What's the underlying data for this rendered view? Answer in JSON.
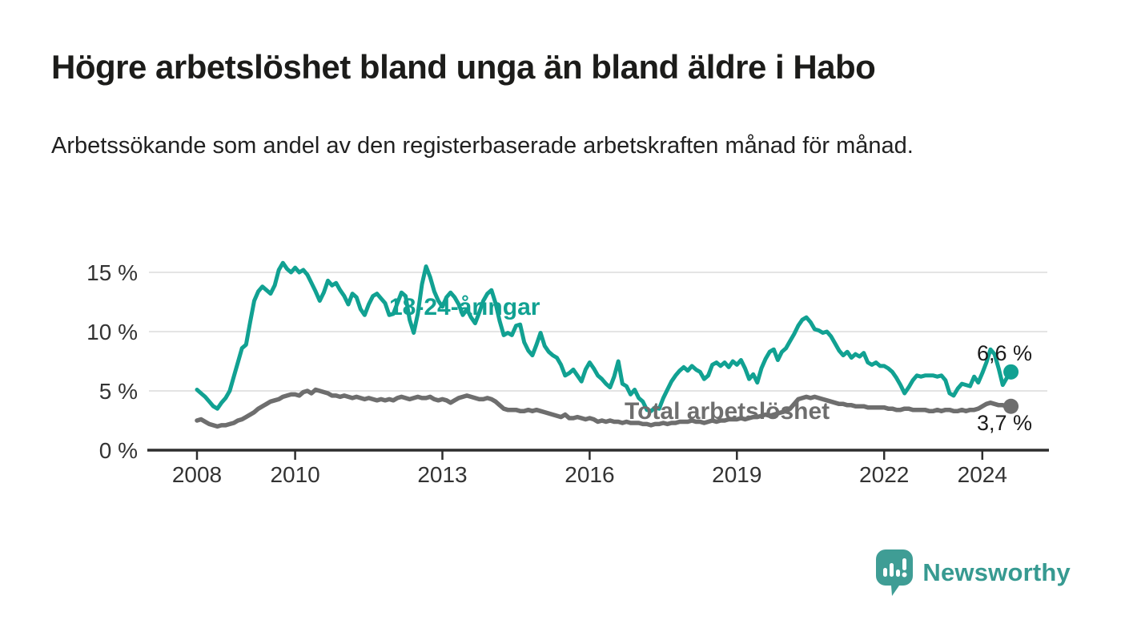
{
  "header": {
    "title": "Högre arbetslöshet bland unga än bland äldre i Habo",
    "subtitle": "Arbetssökande som andel av den registerbaserade arbetskraften månad för månad."
  },
  "chart_data": {
    "type": "line",
    "unit": "%",
    "frequency": "monthly",
    "x_start_year": 2008,
    "x_end_label": "mid 2024",
    "x_axis": {
      "ticks": [
        2008,
        2010,
        2013,
        2016,
        2019,
        2022,
        2024
      ],
      "tick_labels": [
        "2008",
        "2010",
        "2013",
        "2016",
        "2019",
        "2022",
        "2024"
      ]
    },
    "y_axis": {
      "ticks": [
        0,
        5,
        10,
        15
      ],
      "tick_labels": [
        "0 %",
        "5 %",
        "10 %",
        "15 %"
      ],
      "range": [
        0,
        16.5
      ],
      "gridlines": true
    },
    "series": [
      {
        "name": "18-24-åringar",
        "color": "#11a192",
        "end_value": 6.6,
        "end_label": "6,6 %",
        "values": [
          5.1,
          4.8,
          4.5,
          4.1,
          3.7,
          3.5,
          4.0,
          4.4,
          5.0,
          6.2,
          7.4,
          8.6,
          8.9,
          10.8,
          12.6,
          13.4,
          13.8,
          13.5,
          13.2,
          13.9,
          15.2,
          15.8,
          15.3,
          15.0,
          15.4,
          15.0,
          15.2,
          14.8,
          14.1,
          13.4,
          12.6,
          13.3,
          14.3,
          13.9,
          14.1,
          13.5,
          13.0,
          12.3,
          13.2,
          12.9,
          11.9,
          11.4,
          12.3,
          13.0,
          13.2,
          12.8,
          12.4,
          11.4,
          11.5,
          12.4,
          13.3,
          13.0,
          11.0,
          9.9,
          11.5,
          14.0,
          15.5,
          14.6,
          13.4,
          12.6,
          12.1,
          12.9,
          13.3,
          12.9,
          12.3,
          11.4,
          11.9,
          11.2,
          10.7,
          11.6,
          12.6,
          13.2,
          13.5,
          12.4,
          10.9,
          9.7,
          9.9,
          9.7,
          10.5,
          10.6,
          9.1,
          8.4,
          8.0,
          8.9,
          9.9,
          8.8,
          8.3,
          8.0,
          7.8,
          7.2,
          6.3,
          6.5,
          6.8,
          6.3,
          5.8,
          6.8,
          7.4,
          6.9,
          6.3,
          6.0,
          5.6,
          5.3,
          6.2,
          7.5,
          5.6,
          5.4,
          4.7,
          5.1,
          4.4,
          4.1,
          3.4,
          3.3,
          3.6,
          3.5,
          4.4,
          5.1,
          5.8,
          6.3,
          6.7,
          7.0,
          6.7,
          7.1,
          6.8,
          6.6,
          6.0,
          6.3,
          7.2,
          7.4,
          7.1,
          7.4,
          7.0,
          7.5,
          7.2,
          7.6,
          6.9,
          6.0,
          6.4,
          5.7,
          6.9,
          7.7,
          8.3,
          8.5,
          7.6,
          8.3,
          8.6,
          9.2,
          9.8,
          10.5,
          11.0,
          11.2,
          10.8,
          10.2,
          10.1,
          9.9,
          10.0,
          9.6,
          9.0,
          8.4,
          8.0,
          8.3,
          7.8,
          8.1,
          7.9,
          8.2,
          7.4,
          7.2,
          7.4,
          7.1,
          7.1,
          6.9,
          6.6,
          6.1,
          5.5,
          4.8,
          5.3,
          5.9,
          6.3,
          6.2,
          6.3,
          6.3,
          6.3,
          6.2,
          6.3,
          5.9,
          4.8,
          4.6,
          5.2,
          5.6,
          5.5,
          5.4,
          6.2,
          5.7,
          6.5,
          7.4,
          8.5,
          8.1,
          6.9,
          5.5,
          6.1,
          6.6
        ]
      },
      {
        "name": "Total arbetslöshet",
        "color": "#6e6e6e",
        "end_value": 3.7,
        "end_label": "3,7 %",
        "values": [
          2.5,
          2.6,
          2.4,
          2.2,
          2.1,
          2.0,
          2.1,
          2.1,
          2.2,
          2.3,
          2.5,
          2.6,
          2.8,
          3.0,
          3.2,
          3.5,
          3.7,
          3.9,
          4.1,
          4.2,
          4.3,
          4.5,
          4.6,
          4.7,
          4.7,
          4.6,
          4.9,
          5.0,
          4.8,
          5.1,
          5.0,
          4.9,
          4.8,
          4.6,
          4.6,
          4.5,
          4.6,
          4.5,
          4.4,
          4.5,
          4.4,
          4.3,
          4.4,
          4.3,
          4.2,
          4.3,
          4.2,
          4.3,
          4.2,
          4.4,
          4.5,
          4.4,
          4.3,
          4.4,
          4.5,
          4.4,
          4.4,
          4.5,
          4.3,
          4.2,
          4.3,
          4.2,
          4.0,
          4.2,
          4.4,
          4.5,
          4.6,
          4.5,
          4.4,
          4.3,
          4.3,
          4.4,
          4.3,
          4.1,
          3.8,
          3.5,
          3.4,
          3.4,
          3.4,
          3.3,
          3.3,
          3.4,
          3.3,
          3.4,
          3.3,
          3.2,
          3.1,
          3.0,
          2.9,
          2.8,
          3.0,
          2.7,
          2.7,
          2.8,
          2.7,
          2.6,
          2.7,
          2.6,
          2.4,
          2.5,
          2.4,
          2.5,
          2.4,
          2.4,
          2.3,
          2.4,
          2.3,
          2.3,
          2.3,
          2.2,
          2.2,
          2.1,
          2.2,
          2.2,
          2.3,
          2.2,
          2.3,
          2.3,
          2.4,
          2.4,
          2.4,
          2.5,
          2.4,
          2.4,
          2.3,
          2.4,
          2.5,
          2.4,
          2.5,
          2.5,
          2.6,
          2.6,
          2.6,
          2.7,
          2.6,
          2.7,
          2.8,
          2.8,
          2.9,
          3.0,
          2.9,
          3.0,
          3.1,
          3.2,
          3.3,
          3.5,
          3.9,
          4.3,
          4.4,
          4.5,
          4.4,
          4.5,
          4.4,
          4.3,
          4.2,
          4.1,
          4.0,
          3.9,
          3.9,
          3.8,
          3.8,
          3.7,
          3.7,
          3.7,
          3.6,
          3.6,
          3.6,
          3.6,
          3.6,
          3.5,
          3.5,
          3.4,
          3.4,
          3.5,
          3.5,
          3.4,
          3.4,
          3.4,
          3.4,
          3.3,
          3.3,
          3.4,
          3.3,
          3.4,
          3.4,
          3.3,
          3.3,
          3.4,
          3.3,
          3.4,
          3.4,
          3.5,
          3.7,
          3.9,
          4.0,
          3.9,
          3.8,
          3.8,
          3.7,
          3.7
        ]
      }
    ],
    "colors": {
      "gridline": "#dbdbdb",
      "axis": "#2e2e2e",
      "tick_text": "#333333",
      "end_label_text": "#1a1a1a"
    }
  },
  "footer": {
    "brand": "Newsworthy",
    "logo_icon": "bar-chart-speech-bubble-icon",
    "brand_color": "#379a91"
  }
}
